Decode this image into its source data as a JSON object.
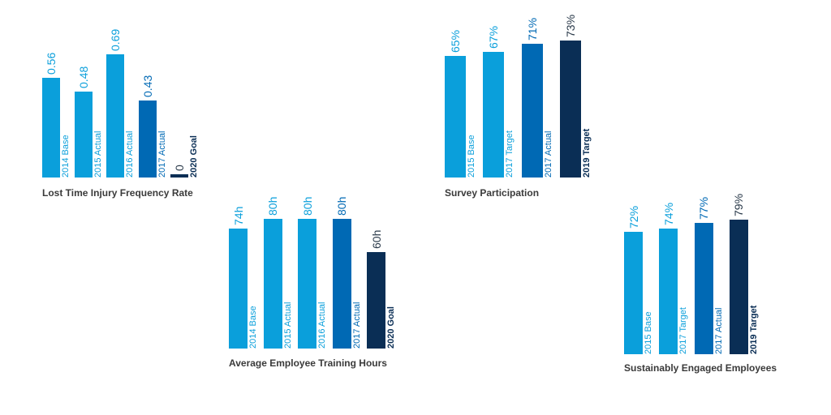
{
  "colors": {
    "light": "#0a9fdb",
    "mid": "#0069b4",
    "dark": "#0a2e55",
    "title": "#3a3a3a"
  },
  "chart_data": [
    {
      "type": "bar",
      "title": "Lost Time Injury Frequency Rate",
      "categories": [
        "2014 Base",
        "2015 Actual",
        "2016 Actual",
        "2017 Actual",
        "2020 Goal"
      ],
      "values": [
        0.56,
        0.48,
        0.69,
        0.43,
        0
      ],
      "value_labels": [
        "0.56",
        "0.48",
        "0.69",
        "0.43",
        "0"
      ],
      "bar_colors": [
        "light",
        "light",
        "light",
        "mid",
        "dark"
      ]
    },
    {
      "type": "bar",
      "title": "Survey Participation",
      "categories": [
        "2015 Base",
        "2017 Target",
        "2017 Actual",
        "2019 Target"
      ],
      "values": [
        65,
        67,
        71,
        73
      ],
      "value_labels": [
        "65%",
        "67%",
        "71%",
        "73%"
      ],
      "bar_colors": [
        "light",
        "light",
        "mid",
        "dark"
      ]
    },
    {
      "type": "bar",
      "title": "Average Employee Training Hours",
      "categories": [
        "2014 Base",
        "2015 Actual",
        "2016 Actual",
        "2017 Actual",
        "2020 Goal"
      ],
      "values": [
        74,
        80,
        80,
        80,
        60
      ],
      "value_labels": [
        "74h",
        "80h",
        "80h",
        "80h",
        "60h"
      ],
      "bar_colors": [
        "light",
        "light",
        "light",
        "mid",
        "dark"
      ]
    },
    {
      "type": "bar",
      "title": "Sustainably Engaged Employees",
      "categories": [
        "2015 Base",
        "2017 Target",
        "2017 Actual",
        "2019 Target"
      ],
      "values": [
        72,
        74,
        77,
        79
      ],
      "value_labels": [
        "72%",
        "74%",
        "77%",
        "79%"
      ],
      "bar_colors": [
        "light",
        "light",
        "mid",
        "dark"
      ]
    }
  ]
}
